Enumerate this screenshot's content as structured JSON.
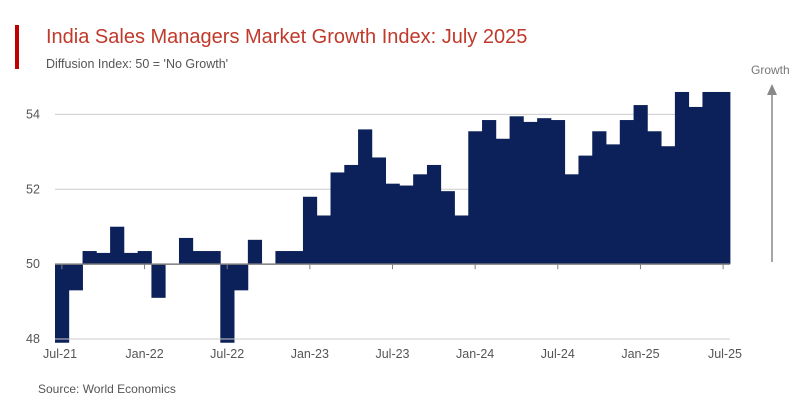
{
  "title": "India Sales Managers Market Growth Index: July 2025",
  "subtitle": "Diffusion Index: 50 = 'No Growth'",
  "source": "Source: World Economics",
  "arrow_label": "Growth",
  "colors": {
    "bar": "#0c2159",
    "accent": "#c00000",
    "title": "#c0392b",
    "grid": "#cccccc"
  },
  "chart_data": {
    "type": "bar",
    "baseline": 50,
    "ylim": [
      48,
      55
    ],
    "yticks": [
      48,
      50,
      52,
      54
    ],
    "xtick_labels": [
      "Jul-21",
      "Jan-22",
      "Jul-22",
      "Jan-23",
      "Jul-23",
      "Jan-24",
      "Jul-24",
      "Jan-25",
      "Jul-25"
    ],
    "xtick_indices": [
      0,
      6,
      12,
      18,
      24,
      30,
      36,
      42,
      48
    ],
    "categories": [
      "Jul-21",
      "Aug-21",
      "Sep-21",
      "Oct-21",
      "Nov-21",
      "Dec-21",
      "Jan-22",
      "Feb-22",
      "Mar-22",
      "Apr-22",
      "May-22",
      "Jun-22",
      "Jul-22",
      "Aug-22",
      "Sep-22",
      "Oct-22",
      "Nov-22",
      "Dec-22",
      "Jan-23",
      "Feb-23",
      "Mar-23",
      "Apr-23",
      "May-23",
      "Jun-23",
      "Jul-23",
      "Aug-23",
      "Sep-23",
      "Oct-23",
      "Nov-23",
      "Dec-23",
      "Jan-24",
      "Feb-24",
      "Mar-24",
      "Apr-24",
      "May-24",
      "Jun-24",
      "Jul-24",
      "Aug-24",
      "Sep-24",
      "Oct-24",
      "Nov-24",
      "Dec-24",
      "Jan-25",
      "Feb-25",
      "Mar-25",
      "Apr-25",
      "May-25",
      "Jun-25",
      "Jul-25"
    ],
    "values": [
      47.9,
      49.3,
      50.35,
      50.3,
      51.0,
      50.3,
      50.35,
      49.1,
      50.0,
      50.7,
      50.35,
      50.35,
      47.9,
      49.3,
      50.65,
      50.0,
      50.35,
      50.35,
      51.8,
      51.3,
      52.45,
      52.65,
      53.6,
      52.85,
      52.15,
      52.1,
      52.4,
      52.65,
      51.95,
      51.3,
      53.55,
      53.85,
      53.35,
      53.95,
      53.8,
      53.9,
      53.85,
      52.4,
      52.9,
      53.55,
      53.2,
      53.85,
      54.25,
      53.55,
      53.15,
      54.6,
      54.2,
      54.6,
      54.6
    ],
    "title": "India Sales Managers Market Growth Index: July 2025",
    "xlabel": "",
    "ylabel": ""
  }
}
